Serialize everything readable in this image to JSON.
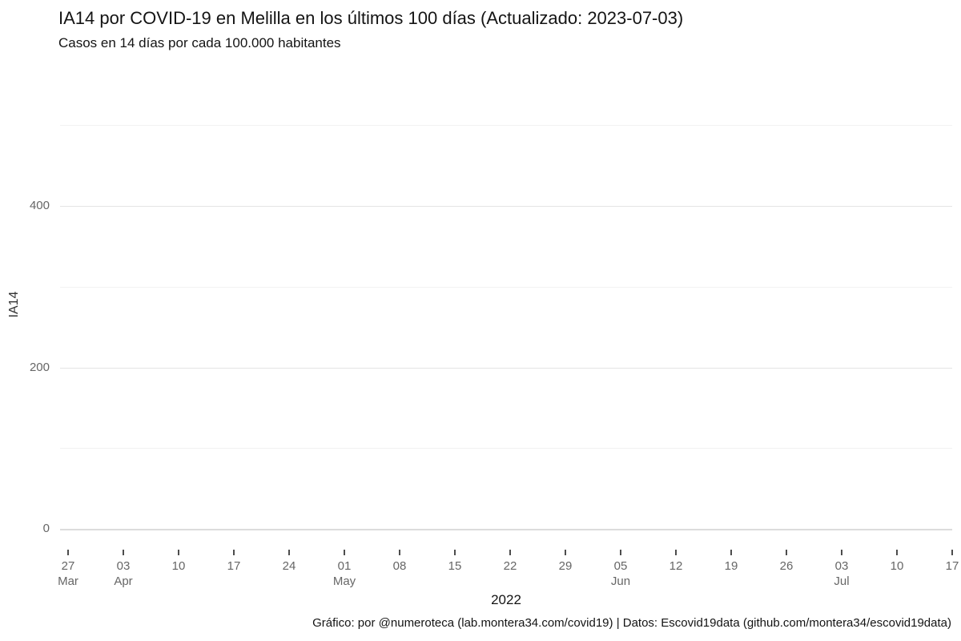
{
  "header": {
    "title": "IA14 por COVID-19 en Melilla en los últimos 100 días (Actualizado: 2023-07-03)",
    "subtitle": "Casos en 14 días por cada 100.000 habitantes",
    "updated_date": "2023-07-03"
  },
  "chart_data": {
    "type": "line",
    "title": "IA14 por COVID-19 en Melilla en los últimos 100 días (Actualizado: 2023-07-03)",
    "subtitle": "Casos en 14 días por cada 100.000 habitantes",
    "xlabel": "2022",
    "ylabel": "IA14",
    "ylim": [
      0,
      500
    ],
    "grid": "horizontal",
    "legend": "none",
    "series": [],
    "data_visible": false,
    "y_axis": {
      "label": "IA14",
      "tick_values": [
        0,
        200,
        400
      ],
      "minor_gridline_values": [
        100,
        300,
        500
      ],
      "range": [
        0,
        500
      ]
    },
    "x_axis": {
      "label": "2022",
      "year": "2022",
      "ticks": [
        {
          "day": "27",
          "month": "Mar"
        },
        {
          "day": "03",
          "month": "Apr"
        },
        {
          "day": "10",
          "month": ""
        },
        {
          "day": "17",
          "month": ""
        },
        {
          "day": "24",
          "month": ""
        },
        {
          "day": "01",
          "month": "May"
        },
        {
          "day": "08",
          "month": ""
        },
        {
          "day": "15",
          "month": ""
        },
        {
          "day": "22",
          "month": ""
        },
        {
          "day": "29",
          "month": ""
        },
        {
          "day": "05",
          "month": "Jun"
        },
        {
          "day": "12",
          "month": ""
        },
        {
          "day": "19",
          "month": ""
        },
        {
          "day": "26",
          "month": ""
        },
        {
          "day": "03",
          "month": "Jul"
        },
        {
          "day": "10",
          "month": ""
        },
        {
          "day": "17",
          "month": ""
        }
      ]
    },
    "caption": "Gráfico: por @numeroteca (lab.montera34.com/covid19) | Datos: Escovid19data (github.com/montera34/escovid19data)"
  },
  "colors": {
    "background": "#ffffff",
    "title_text": "#141414",
    "axis_text": "#666666",
    "tick_mark": "#4d4d4d",
    "gridline_major": "#e4e4e4",
    "gridline_minor": "#f2f2f2",
    "baseline": "#dcdcdc"
  }
}
